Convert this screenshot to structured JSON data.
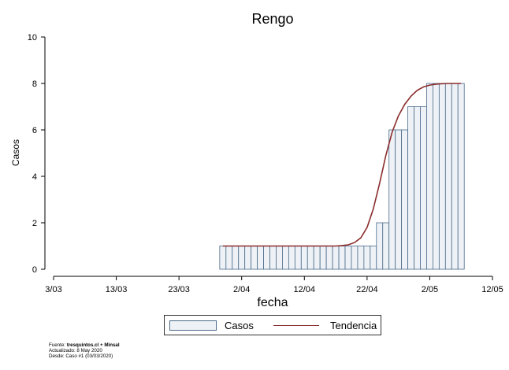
{
  "chart_data": {
    "type": "bar",
    "title": "Rengo",
    "xlabel": "fecha",
    "ylabel": "Casos",
    "ylim": [
      0,
      10
    ],
    "yticks": [
      0,
      2,
      4,
      6,
      8,
      10
    ],
    "xlim": [
      "2020-03-03",
      "2020-05-12"
    ],
    "xticks": [
      "3/03",
      "13/03",
      "23/03",
      "2/04",
      "12/04",
      "22/04",
      "2/05",
      "12/05"
    ],
    "x": [
      "2020-03-30",
      "2020-03-31",
      "2020-04-01",
      "2020-04-02",
      "2020-04-03",
      "2020-04-04",
      "2020-04-05",
      "2020-04-06",
      "2020-04-07",
      "2020-04-08",
      "2020-04-09",
      "2020-04-10",
      "2020-04-11",
      "2020-04-12",
      "2020-04-13",
      "2020-04-14",
      "2020-04-15",
      "2020-04-16",
      "2020-04-17",
      "2020-04-18",
      "2020-04-19",
      "2020-04-20",
      "2020-04-21",
      "2020-04-22",
      "2020-04-23",
      "2020-04-24",
      "2020-04-25",
      "2020-04-26",
      "2020-04-27",
      "2020-04-28",
      "2020-04-29",
      "2020-04-30",
      "2020-05-01",
      "2020-05-02",
      "2020-05-03",
      "2020-05-04",
      "2020-05-05",
      "2020-05-06",
      "2020-05-07"
    ],
    "series": [
      {
        "name": "Casos",
        "type": "bar",
        "color": "#eef2f7",
        "edge_color": "#4a6a8a",
        "values": [
          1,
          1,
          1,
          1,
          1,
          1,
          1,
          1,
          1,
          1,
          1,
          1,
          1,
          1,
          1,
          1,
          1,
          1,
          1,
          1,
          1,
          1,
          1,
          1,
          1,
          2,
          2,
          6,
          6,
          6,
          7,
          7,
          7,
          8,
          8,
          8,
          8,
          8,
          8
        ]
      },
      {
        "name": "Tendencia",
        "type": "line",
        "color": "#8b2d2d",
        "values": [
          1,
          1,
          1,
          1,
          1,
          1,
          1,
          1,
          1,
          1,
          1,
          1,
          1,
          1,
          1,
          1,
          1,
          1,
          1,
          1.02,
          1.05,
          1.15,
          1.35,
          1.8,
          2.6,
          3.7,
          4.9,
          5.9,
          6.6,
          7.1,
          7.45,
          7.7,
          7.85,
          7.93,
          7.97,
          7.99,
          8,
          8,
          8
        ]
      }
    ],
    "legend": {
      "position": "bottom",
      "entries": [
        "Casos",
        "Tendencia"
      ]
    },
    "grid": false
  },
  "source": {
    "line1_prefix": "Fuente: ",
    "line1_bold": "tresquintos.cl + Minsal",
    "line2": "Actualizado: 8 May 2020",
    "line3": "Desde: Caso #1  (03/03/2020)"
  }
}
